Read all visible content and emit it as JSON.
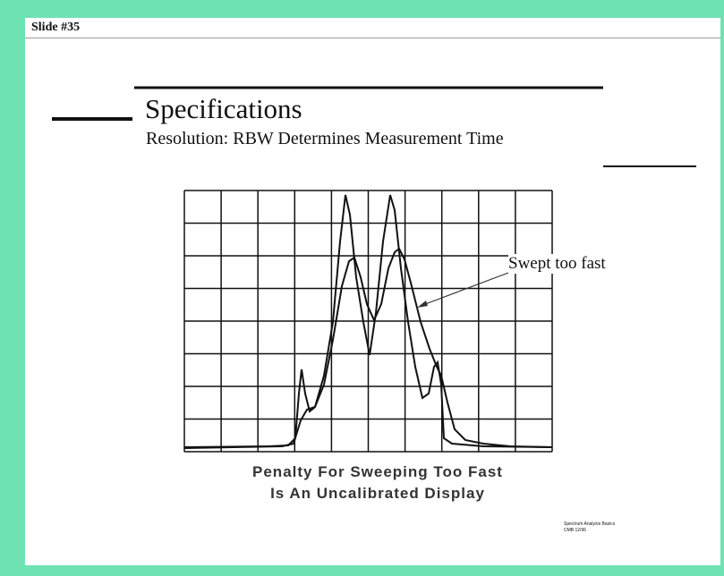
{
  "header": {
    "label": "Slide #35"
  },
  "slide": {
    "title": "Specifications",
    "subtitle": "Resolution: RBW Determines Measurement Time",
    "annotation": "Swept too fast",
    "caption": [
      "Penalty For Sweeping Too Fast",
      "Is An Uncalibrated Display"
    ],
    "footer": [
      "Spectrum Analysis Basics",
      "CMB  12/96"
    ]
  }
}
